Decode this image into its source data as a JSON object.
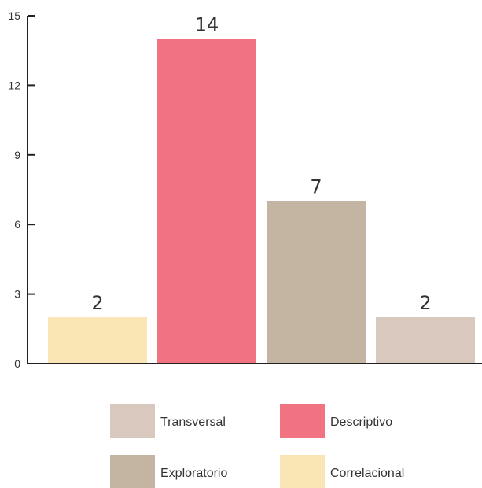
{
  "chart_data": {
    "type": "bar",
    "title": "",
    "xlabel": "",
    "ylabel": "",
    "ylim": [
      0,
      15
    ],
    "yticks": [
      0,
      3,
      6,
      9,
      12,
      15
    ],
    "grid": false,
    "legend_placement": "bottom",
    "bars": [
      {
        "category": "Correlacional",
        "value": 2,
        "label": "2",
        "color": "#fae5b4"
      },
      {
        "category": "Descriptivo",
        "value": 14,
        "label": "14",
        "color": "#f17381"
      },
      {
        "category": "Exploratorio",
        "value": 7,
        "label": "7",
        "color": "#c3b5a2"
      },
      {
        "category": "Transversal",
        "value": 2,
        "label": "2",
        "color": "#d8c8bd"
      }
    ],
    "legend": [
      {
        "label": "Transversal",
        "color": "#d8c8bd"
      },
      {
        "label": "Descriptivo",
        "color": "#f17381"
      },
      {
        "label": "Exploratorio",
        "color": "#c3b5a2"
      },
      {
        "label": "Correlacional",
        "color": "#fae5b4"
      }
    ]
  }
}
